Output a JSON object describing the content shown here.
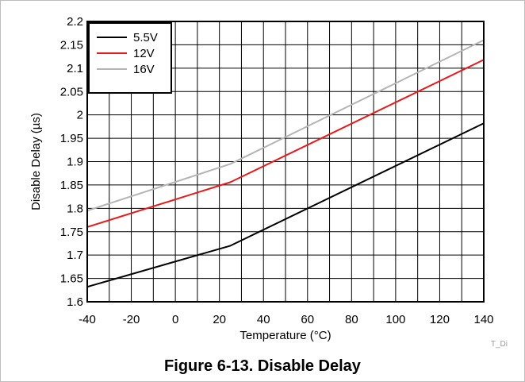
{
  "caption": "Figure 6-13. Disable Delay",
  "image_code": "T_Di",
  "chart_data": {
    "type": "line",
    "title": "",
    "xlabel": "Temperature (°C)",
    "ylabel": "Disable Delay (µs)",
    "xlim": [
      -40,
      140
    ],
    "ylim": [
      1.6,
      2.2
    ],
    "xticks": [
      -40,
      -20,
      0,
      20,
      40,
      60,
      80,
      100,
      120,
      140
    ],
    "yticks": [
      1.6,
      1.65,
      1.7,
      1.75,
      1.8,
      1.85,
      1.9,
      1.95,
      2,
      2.05,
      2.1,
      2.15,
      2.2
    ],
    "grid": true,
    "legend_position": "top-left",
    "series": [
      {
        "name": "5.5V",
        "color": "#000000",
        "x": [
          -40,
          25,
          140
        ],
        "y": [
          1.632,
          1.72,
          1.982
        ]
      },
      {
        "name": "12V",
        "color": "#e8191b",
        "x": [
          -40,
          25,
          140
        ],
        "y": [
          1.76,
          1.856,
          2.118
        ]
      },
      {
        "name": "16V",
        "color": "#b4b4b4",
        "x": [
          -40,
          25,
          140
        ],
        "y": [
          1.795,
          1.895,
          2.16
        ]
      }
    ]
  }
}
